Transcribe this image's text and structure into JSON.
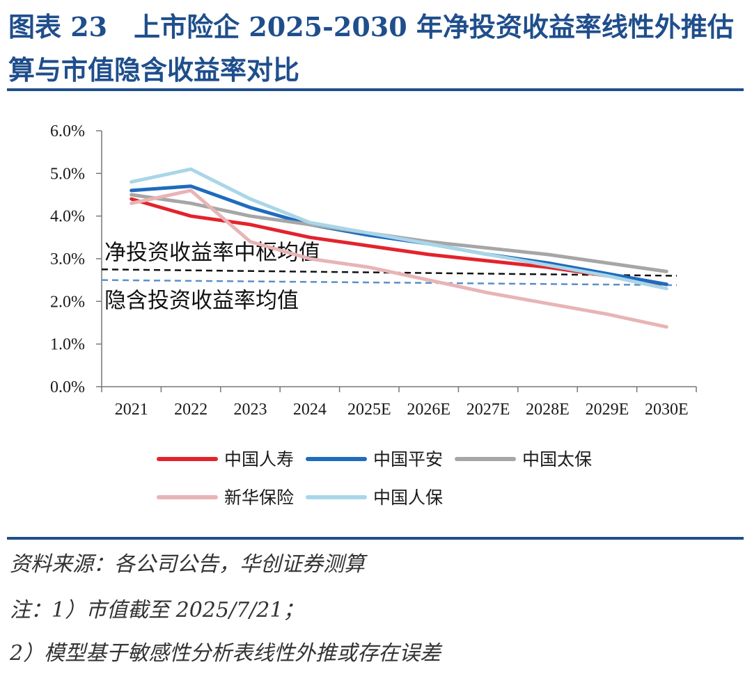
{
  "header": {
    "title": "图表 23　上市险企 2025-2030 年净投资收益率线性外推估算与市值隐含收益率对比"
  },
  "footer": {
    "source": "资料来源：各公司公告，华创证券测算",
    "note1": "注：1）市值截至 2025/7/21；",
    "note2": "2）模型基于敏感性分析表线性外推或存在误差"
  },
  "chart_data": {
    "type": "line",
    "categories": [
      "2021",
      "2022",
      "2023",
      "2024",
      "2025E",
      "2026E",
      "2027E",
      "2028E",
      "2029E",
      "2030E"
    ],
    "yticks": [
      "0.0%",
      "1.0%",
      "2.0%",
      "3.0%",
      "4.0%",
      "5.0%",
      "6.0%"
    ],
    "ylim": [
      0,
      6
    ],
    "unit": "%",
    "grid": false,
    "legend_position": "bottom",
    "series": [
      {
        "name": "中国人寿",
        "color": "#e3232c",
        "values": [
          4.4,
          4.0,
          3.8,
          3.5,
          3.3,
          3.1,
          2.95,
          2.8,
          2.6,
          2.4
        ]
      },
      {
        "name": "中国平安",
        "color": "#1f6bbd",
        "values": [
          4.6,
          4.7,
          4.2,
          3.8,
          3.55,
          3.35,
          3.1,
          2.9,
          2.65,
          2.4
        ]
      },
      {
        "name": "中国太保",
        "color": "#a6a6a6",
        "values": [
          4.5,
          4.3,
          4.0,
          3.8,
          3.6,
          3.4,
          3.25,
          3.1,
          2.9,
          2.7
        ]
      },
      {
        "name": "新华保险",
        "color": "#e8b4b6",
        "values": [
          4.3,
          4.6,
          3.4,
          3.0,
          2.8,
          2.5,
          2.2,
          1.95,
          1.7,
          1.4
        ]
      },
      {
        "name": "中国人保",
        "color": "#a9d6e8",
        "values": [
          4.8,
          5.1,
          4.4,
          3.85,
          3.6,
          3.35,
          3.1,
          2.85,
          2.6,
          2.3
        ]
      }
    ],
    "reference_lines": [
      {
        "label": "净投资收益率中枢均值",
        "value": 2.75,
        "value_end": 2.6,
        "color": "#111111"
      },
      {
        "label": "隐含投资收益率均值",
        "value": 2.5,
        "value_end": 2.38,
        "color": "#5b8fc9"
      }
    ]
  }
}
